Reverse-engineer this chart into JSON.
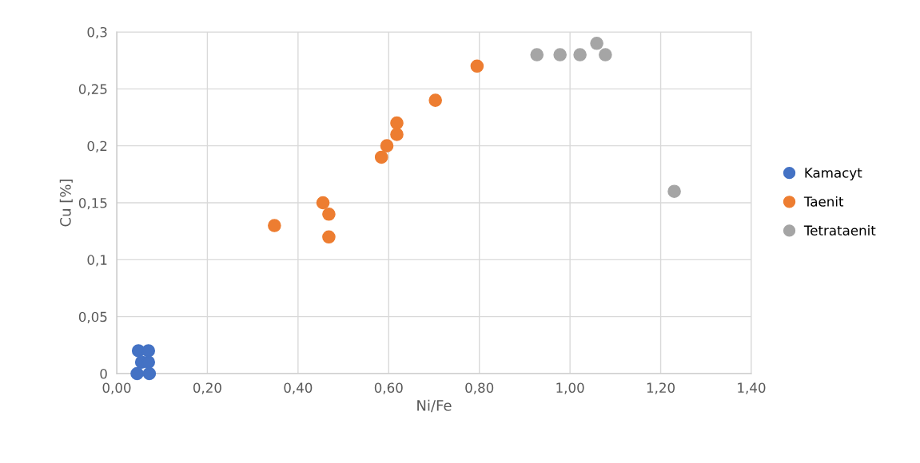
{
  "chart_data": {
    "type": "scatter",
    "xlabel": "Ni/Fe",
    "ylabel": "Cu [%]",
    "xlim": [
      0,
      1.4
    ],
    "ylim": [
      0,
      0.3
    ],
    "xticks": [
      {
        "value": 0,
        "label": "0,00"
      },
      {
        "value": 0.2,
        "label": "0,20"
      },
      {
        "value": 0.4,
        "label": "0,40"
      },
      {
        "value": 0.6,
        "label": "0,60"
      },
      {
        "value": 0.8,
        "label": "0,80"
      },
      {
        "value": 1.0,
        "label": "1,00"
      },
      {
        "value": 1.2,
        "label": "1,20"
      },
      {
        "value": 1.4,
        "label": "1,40"
      }
    ],
    "yticks": [
      0,
      {
        "value": 0.05,
        "label": "0,05"
      },
      {
        "value": 0.1,
        "label": "0,1"
      },
      {
        "value": 0.15,
        "label": "0,15"
      },
      {
        "value": 0.2,
        "label": "0,2"
      },
      {
        "value": 0.25,
        "label": "0,25"
      },
      {
        "value": 0.3,
        "label": "0,3"
      }
    ],
    "grid": true,
    "legend": "right",
    "marker": "circle",
    "series": [
      {
        "name": "Kamacyt",
        "color": "#4472c4",
        "x": [
          0.048,
          0.07,
          0.055,
          0.07,
          0.045,
          0.072
        ],
        "values": [
          0.02,
          0.02,
          0.01,
          0.01,
          0,
          0
        ]
      },
      {
        "name": "Taenit",
        "color": "#ed7d31",
        "x": [
          0.348,
          0.455,
          0.468,
          0.468,
          0.584,
          0.596,
          0.618,
          0.618,
          0.703,
          0.795
        ],
        "values": [
          0.13,
          0.15,
          0.14,
          0.12,
          0.19,
          0.2,
          0.21,
          0.22,
          0.24,
          0.27
        ]
      },
      {
        "name": "Tetrataenit",
        "color": "#a5a5a5",
        "x": [
          0.927,
          0.978,
          1.022,
          1.059,
          1.078,
          1.23
        ],
        "values": [
          0.28,
          0.28,
          0.28,
          0.29,
          0.28,
          0.16
        ]
      }
    ]
  }
}
